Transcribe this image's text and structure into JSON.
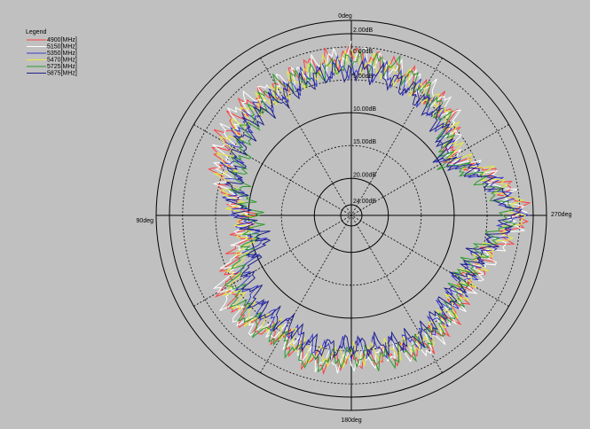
{
  "chart_data": {
    "type": "polar",
    "legend": {
      "title": "Legend",
      "placement": "top-left",
      "title_color": "#0000c8"
    },
    "angle_labels": [
      "0deg",
      "90deg",
      "180deg",
      "270deg"
    ],
    "angle_direction": "counterclockwise",
    "angle_step_deg": 30,
    "radial_unit": "dB",
    "radial_ticks": [
      {
        "label": "2.00dB",
        "value": 2
      },
      {
        "label": "0.00dB",
        "value": 0
      },
      {
        "label": "5.00dB",
        "value": -5
      },
      {
        "label": "10.00dB",
        "value": -10
      },
      {
        "label": "15.00dB",
        "value": -15
      },
      {
        "label": "20.00dB",
        "value": -20
      },
      {
        "label": "24.00dB",
        "value": -24
      }
    ],
    "rlim": [
      -24,
      2
    ],
    "grid": true,
    "series": [
      {
        "name": "4900[MHz]",
        "color": "#ff4040",
        "theta": [
          0,
          15,
          30,
          45,
          60,
          75,
          90,
          105,
          120,
          135,
          150,
          165,
          180,
          195,
          210,
          225,
          240,
          255,
          270,
          285,
          300,
          315,
          330,
          345
        ],
        "r": [
          -1.5,
          -2.0,
          -3.5,
          -2.5,
          -3.0,
          -5.0,
          -10.0,
          -8.0,
          -3.5,
          -3.0,
          -4.5,
          -2.5,
          -4.0,
          -3.5,
          -3.0,
          -4.0,
          -5.5,
          -4.0,
          0.5,
          -3.0,
          -8.5,
          -4.5,
          -3.5,
          -2.0
        ]
      },
      {
        "name": "5150[MHz]",
        "color": "#ffffff",
        "theta": [
          0,
          15,
          30,
          45,
          60,
          75,
          90,
          105,
          120,
          135,
          150,
          165,
          180,
          195,
          210,
          225,
          240,
          255,
          270,
          285,
          300,
          315,
          330,
          345
        ],
        "r": [
          -1.0,
          -2.5,
          -3.0,
          -2.0,
          -3.5,
          -5.5,
          -9.5,
          -8.5,
          -3.0,
          -2.5,
          -5.0,
          -3.0,
          -3.5,
          -4.0,
          -2.5,
          -4.5,
          -5.0,
          -3.5,
          0.0,
          -3.5,
          -8.0,
          -4.0,
          -3.0,
          -2.5
        ]
      },
      {
        "name": "5350[MHz]",
        "color": "#3a3acc",
        "theta": [
          0,
          15,
          30,
          45,
          60,
          75,
          90,
          105,
          120,
          135,
          150,
          165,
          180,
          195,
          210,
          225,
          240,
          255,
          270,
          285,
          300,
          315,
          330,
          345
        ],
        "r": [
          -3.0,
          -3.5,
          -4.5,
          -4.0,
          -5.0,
          -7.0,
          -8.5,
          -11.0,
          -6.5,
          -5.5,
          -6.0,
          -4.5,
          -5.5,
          -5.0,
          -4.0,
          -5.5,
          -6.0,
          -5.0,
          -0.5,
          -4.0,
          -9.0,
          -6.0,
          -4.5,
          -3.5
        ]
      },
      {
        "name": "5470[MHz]",
        "color": "#e8e840",
        "theta": [
          0,
          15,
          30,
          45,
          60,
          75,
          90,
          105,
          120,
          135,
          150,
          165,
          180,
          195,
          210,
          225,
          240,
          255,
          270,
          285,
          300,
          315,
          330,
          345
        ],
        "r": [
          -2.0,
          -3.0,
          -4.0,
          -3.5,
          -4.0,
          -6.0,
          -9.0,
          -9.5,
          -4.5,
          -4.0,
          -5.5,
          -3.5,
          -4.5,
          -4.5,
          -3.5,
          -5.0,
          -5.5,
          -4.5,
          0.0,
          -3.5,
          -7.5,
          -5.0,
          -4.0,
          -3.0
        ]
      },
      {
        "name": "5725[MHz]",
        "color": "#2e9b2e",
        "theta": [
          0,
          15,
          30,
          45,
          60,
          75,
          90,
          105,
          120,
          135,
          150,
          165,
          180,
          195,
          210,
          225,
          240,
          255,
          270,
          285,
          300,
          315,
          330,
          345
        ],
        "r": [
          -2.5,
          -3.5,
          -3.0,
          -4.5,
          -6.5,
          -8.0,
          -11.0,
          -10.0,
          -5.0,
          -3.5,
          -4.0,
          -2.5,
          -4.5,
          -3.0,
          -3.5,
          -4.5,
          -6.5,
          -5.5,
          -1.5,
          -5.0,
          -9.5,
          -5.5,
          -3.5,
          -2.0
        ]
      },
      {
        "name": "5875[MHz]",
        "color": "#20208a",
        "theta": [
          0,
          15,
          30,
          45,
          60,
          75,
          90,
          105,
          120,
          135,
          150,
          165,
          180,
          195,
          210,
          225,
          240,
          255,
          270,
          285,
          300,
          315,
          330,
          345
        ],
        "r": [
          -3.5,
          -4.0,
          -5.0,
          -5.0,
          -6.0,
          -7.5,
          -9.0,
          -12.0,
          -7.5,
          -6.0,
          -6.5,
          -5.0,
          -6.0,
          -5.5,
          -4.5,
          -6.0,
          -6.5,
          -5.5,
          -1.0,
          -4.5,
          -9.5,
          -6.5,
          -5.0,
          -4.0
        ]
      }
    ]
  }
}
